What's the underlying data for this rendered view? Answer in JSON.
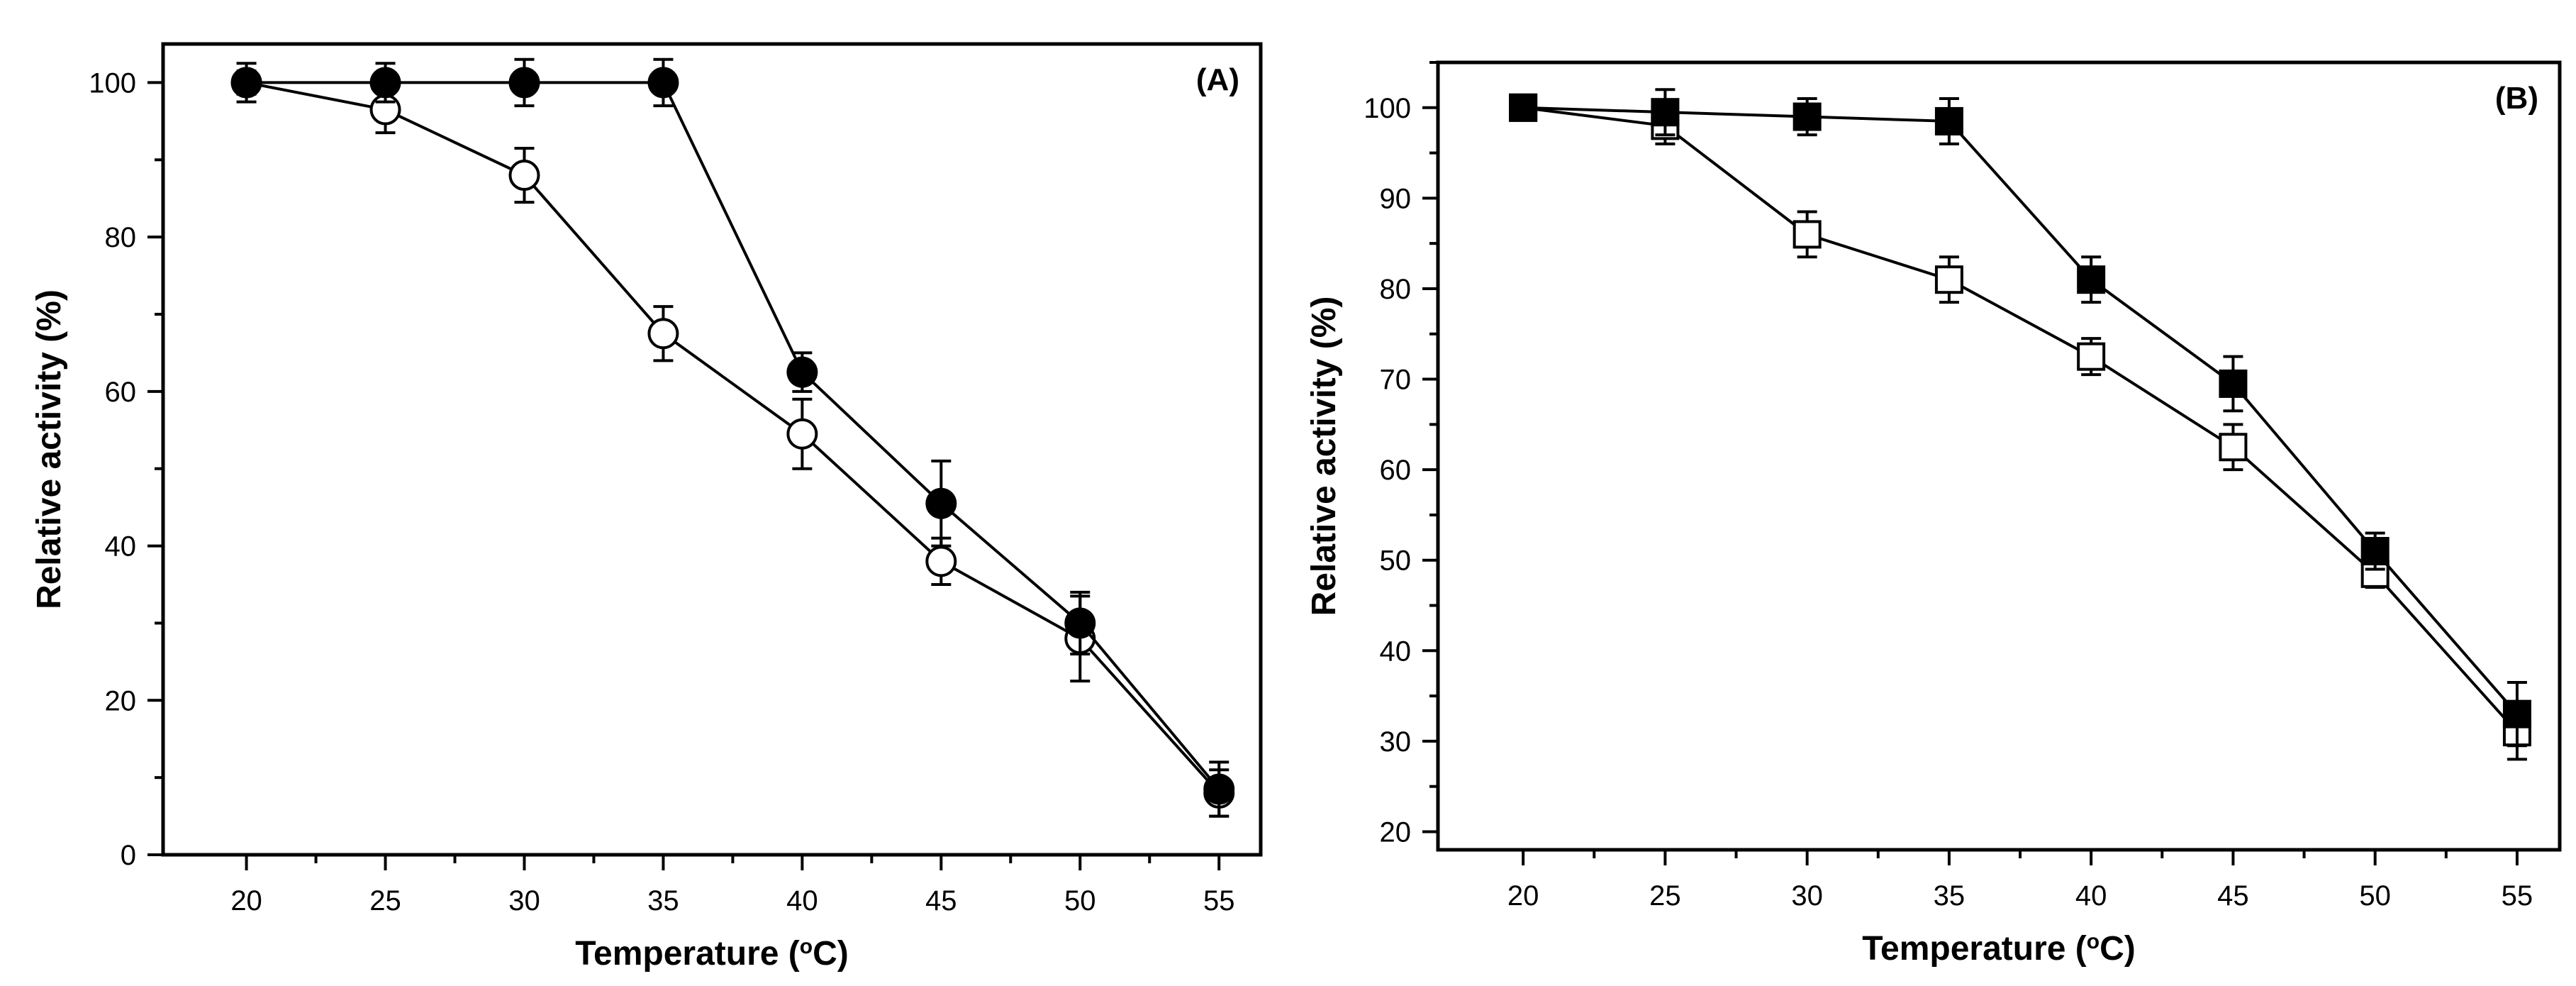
{
  "chart_data": [
    {
      "type": "line",
      "panel_label": "(A)",
      "xlabel": "Temperature (°C)",
      "xlabel_main": "Temperature (",
      "xlabel_unit_sup": "o",
      "xlabel_unit": "C)",
      "ylabel": "Relative activity (%)",
      "x": [
        20,
        25,
        30,
        35,
        40,
        45,
        50,
        55
      ],
      "xticks": [
        20,
        25,
        30,
        35,
        40,
        45,
        50,
        55
      ],
      "xlim": [
        17,
        56.5
      ],
      "ylim": [
        0,
        105
      ],
      "yticks": [
        0,
        20,
        40,
        60,
        80,
        100
      ],
      "series": [
        {
          "name": "filled circles",
          "marker": "circle",
          "fill": "#000000",
          "values": [
            100,
            100,
            100,
            100,
            62.5,
            45.5,
            30,
            8.5
          ],
          "errors": [
            2.5,
            2.5,
            3,
            3,
            2.5,
            5.5,
            4,
            3.5
          ]
        },
        {
          "name": "open circles",
          "marker": "circle",
          "fill": "#ffffff",
          "values": [
            100,
            96.5,
            88,
            67.5,
            54.5,
            38,
            28,
            8
          ],
          "errors": [
            1.5,
            3,
            3.5,
            3.5,
            4.5,
            3,
            5.5,
            3
          ]
        }
      ]
    },
    {
      "type": "line",
      "panel_label": "(B)",
      "xlabel": "Temperature (°C)",
      "xlabel_main": "Temperature (",
      "xlabel_unit_sup": "o",
      "xlabel_unit": "C)",
      "ylabel": "Relative activity (%)",
      "x": [
        20,
        25,
        30,
        35,
        40,
        45,
        50,
        55
      ],
      "xticks": [
        20,
        25,
        30,
        35,
        40,
        45,
        50,
        55
      ],
      "xlim": [
        17,
        56.5
      ],
      "ylim": [
        18,
        105
      ],
      "yticks": [
        20,
        30,
        40,
        50,
        60,
        70,
        80,
        90,
        100
      ],
      "series": [
        {
          "name": "filled squares",
          "marker": "square",
          "fill": "#000000",
          "values": [
            100,
            99.5,
            99,
            98.5,
            81,
            69.5,
            51,
            33
          ],
          "errors": [
            0.5,
            2.5,
            2,
            2.5,
            2.5,
            3,
            2,
            3.5
          ]
        },
        {
          "name": "open squares",
          "marker": "square",
          "fill": "#ffffff",
          "values": [
            100,
            98,
            86,
            81,
            72.5,
            62.5,
            48.5,
            31
          ],
          "errors": [
            0.5,
            2,
            2.5,
            2.5,
            2,
            2.5,
            1.5,
            3
          ]
        }
      ]
    }
  ]
}
